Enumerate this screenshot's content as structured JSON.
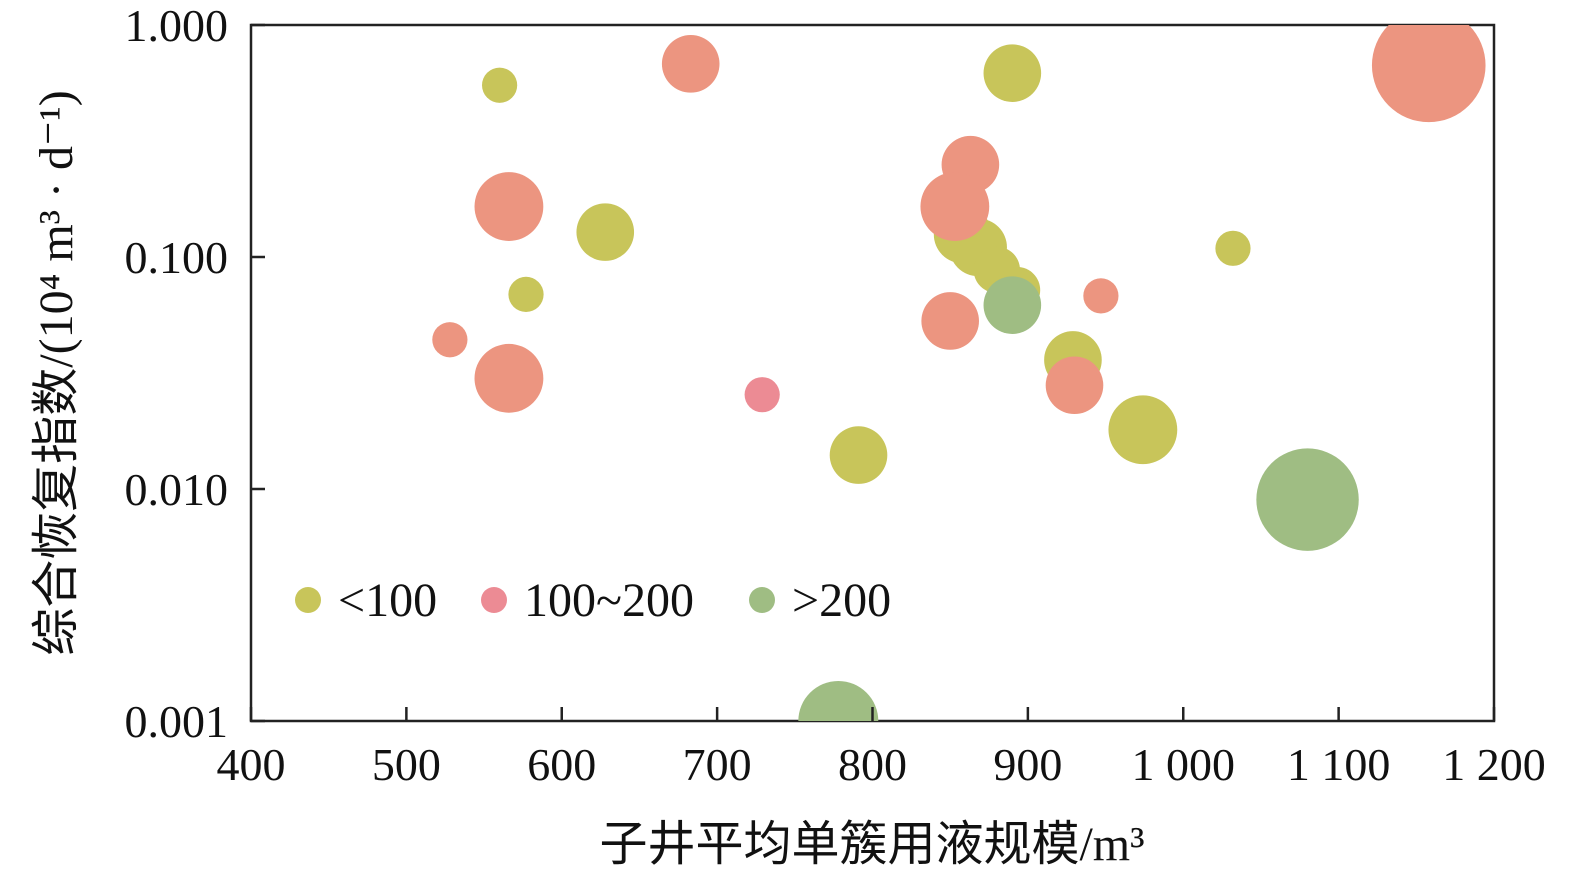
{
  "chart_data": {
    "type": "scatter",
    "xlabel": "子井平均单簇用液规模/m³",
    "ylabel": "综合恢复指数/(10⁴ m³ · d⁻¹)",
    "xlim": [
      400,
      1200
    ],
    "ylim": [
      0.001,
      1.0
    ],
    "yscale": "log",
    "x_ticks": [
      400,
      500,
      600,
      700,
      800,
      900,
      1000,
      1100,
      1200
    ],
    "x_tick_labels": [
      "400",
      "500",
      "600",
      "700",
      "800",
      "900",
      "1 000",
      "1 100",
      "1 200"
    ],
    "y_ticks": [
      0.001,
      0.01,
      0.1,
      1.0
    ],
    "y_tick_labels": [
      "0.001",
      "0.010",
      "0.100",
      "1.000"
    ],
    "grid": false,
    "legend_position": "lower-left",
    "series": [
      {
        "name": "<100",
        "color": "#c8c55a",
        "points": [
          {
            "x": 560,
            "y": 0.55,
            "size": 1
          },
          {
            "x": 577,
            "y": 0.069,
            "size": 1
          },
          {
            "x": 628,
            "y": 0.128,
            "size": 3
          },
          {
            "x": 791,
            "y": 0.014,
            "size": 3
          },
          {
            "x": 890,
            "y": 0.62,
            "size": 3
          },
          {
            "x": 858,
            "y": 0.125,
            "size": 3
          },
          {
            "x": 868,
            "y": 0.11,
            "size": 3
          },
          {
            "x": 880,
            "y": 0.088,
            "size": 2
          },
          {
            "x": 893,
            "y": 0.072,
            "size": 2
          },
          {
            "x": 929,
            "y": 0.036,
            "size": 3
          },
          {
            "x": 974,
            "y": 0.018,
            "size": 4
          },
          {
            "x": 1032,
            "y": 0.109,
            "size": 1
          }
        ]
      },
      {
        "name": "100~200",
        "color": "#ec8b94",
        "points": [
          {
            "x": 729,
            "y": 0.0255,
            "size": 1
          }
        ]
      },
      {
        "name": ">200",
        "color": "#9fbd83",
        "points": [
          {
            "x": 890,
            "y": 0.062,
            "size": 3
          },
          {
            "x": 1080,
            "y": 0.009,
            "size": 7
          },
          {
            "x": 778,
            "y": 0.001,
            "size": 5
          }
        ]
      },
      {
        "color": "#ec9580",
        "points": [
          {
            "x": 528,
            "y": 0.044,
            "size": 1
          },
          {
            "x": 566,
            "y": 0.165,
            "size": 4
          },
          {
            "x": 566,
            "y": 0.03,
            "size": 4
          },
          {
            "x": 683,
            "y": 0.68,
            "size": 3
          },
          {
            "x": 863,
            "y": 0.25,
            "size": 3
          },
          {
            "x": 853,
            "y": 0.165,
            "size": 4
          },
          {
            "x": 850,
            "y": 0.053,
            "size": 3
          },
          {
            "x": 930,
            "y": 0.028,
            "size": 3
          },
          {
            "x": 947,
            "y": 0.068,
            "size": 1
          },
          {
            "x": 1158,
            "y": 0.67,
            "size": 8
          }
        ]
      }
    ]
  }
}
